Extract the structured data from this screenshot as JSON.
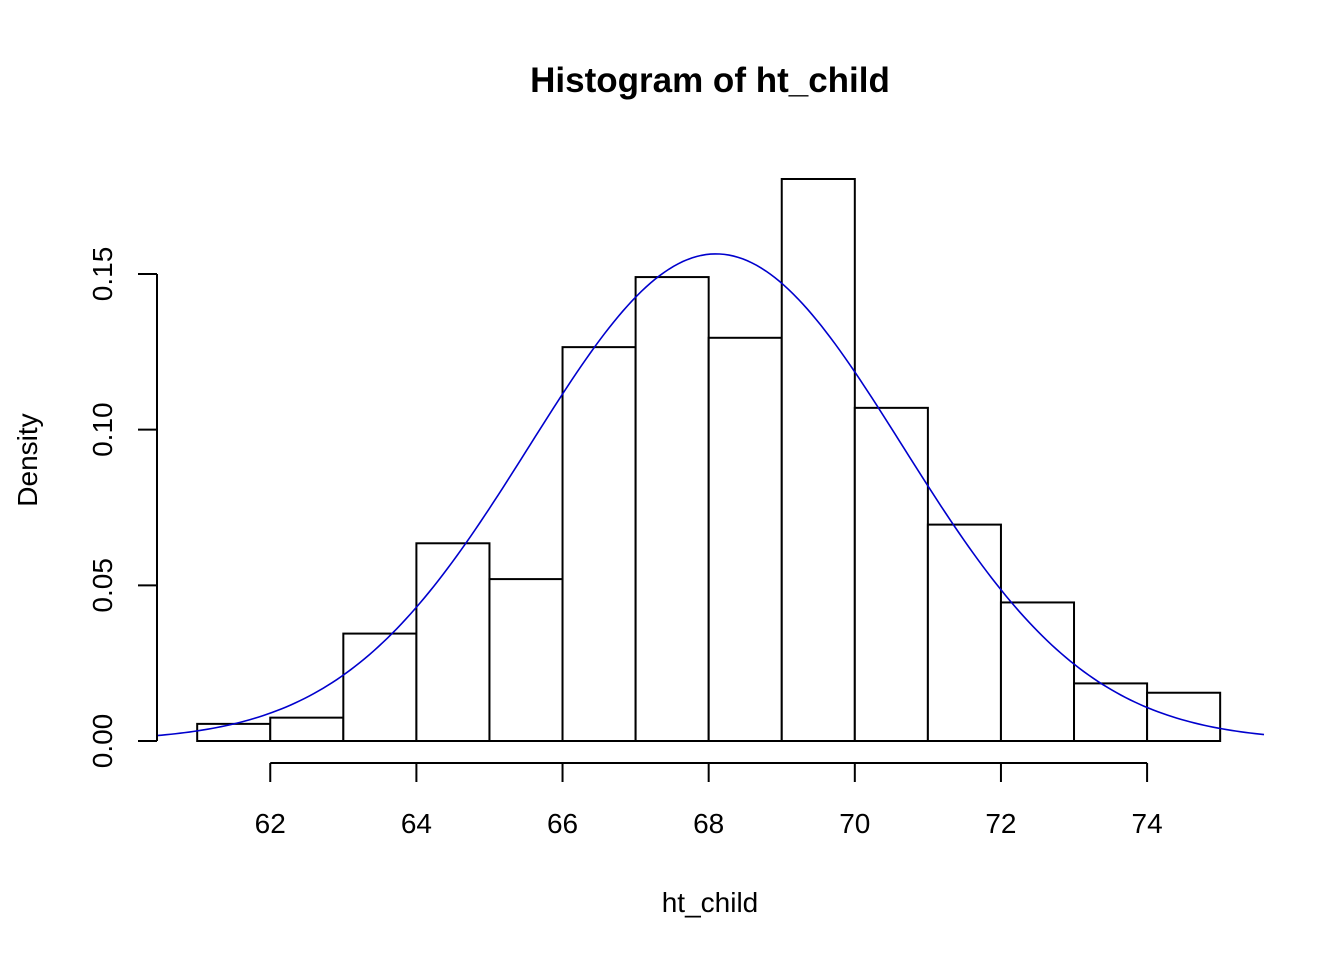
{
  "chart_data": {
    "type": "bar",
    "subtype": "histogram",
    "title": "Histogram of ht_child",
    "xlabel": "ht_child",
    "ylabel": "Density",
    "bins": [
      {
        "start": 61,
        "end": 62,
        "density": 0.0055
      },
      {
        "start": 62,
        "end": 63,
        "density": 0.0075
      },
      {
        "start": 63,
        "end": 64,
        "density": 0.0345
      },
      {
        "start": 64,
        "end": 65,
        "density": 0.0635
      },
      {
        "start": 65,
        "end": 66,
        "density": 0.052
      },
      {
        "start": 66,
        "end": 67,
        "density": 0.1265
      },
      {
        "start": 67,
        "end": 68,
        "density": 0.149
      },
      {
        "start": 68,
        "end": 69,
        "density": 0.1295
      },
      {
        "start": 69,
        "end": 70,
        "density": 0.1805
      },
      {
        "start": 70,
        "end": 71,
        "density": 0.107
      },
      {
        "start": 71,
        "end": 72,
        "density": 0.0695
      },
      {
        "start": 72,
        "end": 73,
        "density": 0.0445
      },
      {
        "start": 73,
        "end": 74,
        "density": 0.0185
      },
      {
        "start": 74,
        "end": 75,
        "density": 0.0155
      }
    ],
    "density_curve": {
      "distribution": "normal",
      "mean": 68.1,
      "sd": 2.55,
      "x_range": [
        60.45,
        75.6
      ],
      "color": "#0000CD"
    },
    "x_ticks": [
      "62",
      "64",
      "66",
      "68",
      "70",
      "72",
      "74"
    ],
    "y_ticks": [
      "0.00",
      "0.05",
      "0.10",
      "0.15"
    ],
    "xlim": [
      60.45,
      75.6
    ],
    "ylim": [
      0,
      0.1805
    ],
    "grid": false,
    "bar_fill": "#ffffff",
    "bar_border": "#000000"
  }
}
